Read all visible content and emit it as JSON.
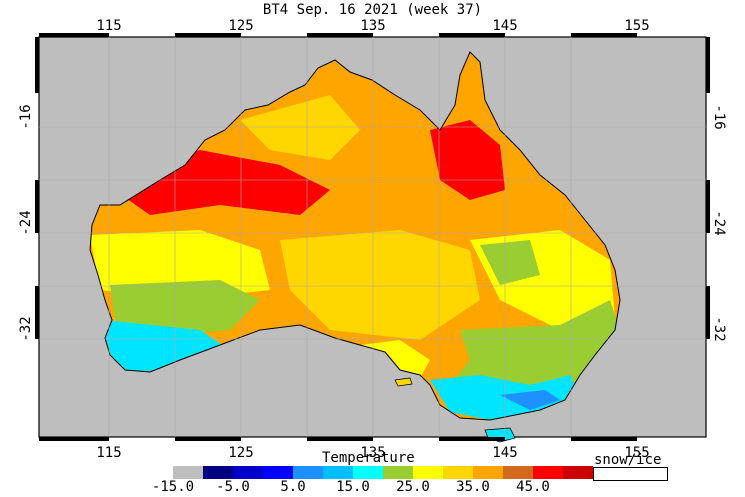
{
  "title": "BT4 Sep. 16 2021 (week 37)",
  "axes": {
    "lon_ticks": [
      "115",
      "125",
      "135",
      "145",
      "155"
    ],
    "lat_ticks": [
      "-16",
      "-24",
      "-32"
    ]
  },
  "legend": {
    "title": "Temperature",
    "swatches": [
      "#bebebe",
      "#000080",
      "#0000cd",
      "#0000ff",
      "#1e90ff",
      "#00bfff",
      "#00ffff",
      "#9acd32",
      "#ffff00",
      "#ffd700",
      "#ffa500",
      "#d2691e",
      "#ff0000",
      "#cd0000",
      "#8b0000"
    ],
    "tick_labels": [
      "-15.0",
      "-5.0",
      "5.0",
      "15.0",
      "25.0",
      "35.0",
      "45.0"
    ],
    "snow_label": "snow/ice"
  },
  "colors": {
    "ocean": "#bebebe",
    "hot": "#ff0000",
    "warm": "#ffa500",
    "mild": "#ffd700",
    "cool": "#ffff00",
    "green": "#9acd32",
    "cold": "#00e5ff",
    "coldest": "#1e90ff"
  }
}
